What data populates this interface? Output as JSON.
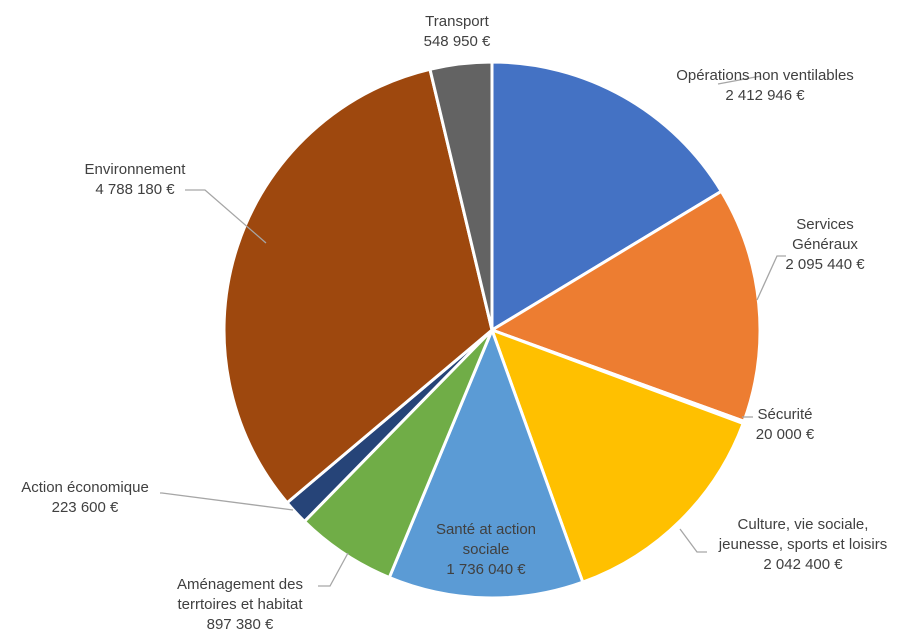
{
  "chart_data": {
    "type": "pie",
    "title": "",
    "slices": [
      {
        "name": "Opérations non ventilables",
        "label": "Opérations non ventilables",
        "value": 2412946,
        "display_value": "2 412 946 €",
        "color": "#4472C4"
      },
      {
        "name": "Services Généraux",
        "label": "Services Généraux",
        "value": 2095440,
        "display_value": "2 095 440 €",
        "color": "#ED7D31"
      },
      {
        "name": "Sécurité",
        "label": "Sécurité",
        "value": 20000,
        "display_value": "20 000 €",
        "color": "#A5A5A5"
      },
      {
        "name": "Culture, vie sociale, jeunesse, sports et loisirs",
        "label": "Culture, vie sociale,\njeunesse, sports et loisirs",
        "value": 2042400,
        "display_value": "2 042 400 €",
        "color": "#FFC000"
      },
      {
        "name": "Santé at action sociale",
        "label": "Santé at action\nsociale",
        "value": 1736040,
        "display_value": "1 736 040 €",
        "color": "#5B9BD5"
      },
      {
        "name": "Aménagement des terrtoires et habitat",
        "label": "Aménagement des\nterrtoires et habitat",
        "value": 897380,
        "display_value": "897 380 €",
        "color": "#70AD47"
      },
      {
        "name": "Action économique",
        "label": "Action économique",
        "value": 223600,
        "display_value": "223 600 €",
        "color": "#264478"
      },
      {
        "name": "Environnement",
        "label": "Environnement",
        "value": 4788180,
        "display_value": "4 788 180 €",
        "color": "#9E480E"
      },
      {
        "name": "Transport",
        "label": "Transport",
        "value": 548950,
        "display_value": "548 950 €",
        "color": "#636363"
      }
    ]
  }
}
